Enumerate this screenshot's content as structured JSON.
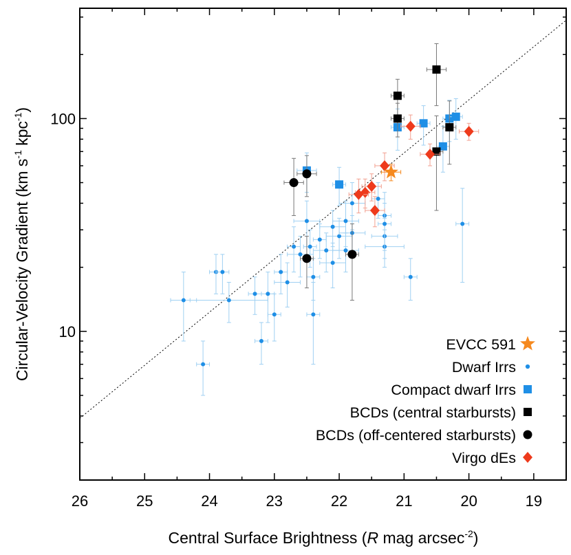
{
  "chart_data": {
    "type": "scatter",
    "title": "",
    "xlabel": {
      "prefix": "Central Surface Brightness (",
      "italic": "R",
      "middle": " mag arcsec",
      "sup": "-2",
      "suffix": ")"
    },
    "ylabel": {
      "prefix": "Circular-Velocity Gradient (km s",
      "sup1": "-1",
      "middle": " kpc",
      "sup2": "-1",
      "suffix": ")"
    },
    "xlim": [
      26,
      18.5
    ],
    "ylim": [
      2.0,
      330
    ],
    "yscale": "log",
    "x_ticks": [
      26,
      25,
      24,
      23,
      22,
      21,
      20,
      19
    ],
    "x_tick_labels": [
      "26",
      "25",
      "24",
      "23",
      "22",
      "21",
      "20",
      "19"
    ],
    "y_ticks": [
      10,
      100
    ],
    "y_tick_labels": [
      "10",
      "100"
    ],
    "fit_line": {
      "style": "dotted",
      "points": [
        [
          26,
          3.9
        ],
        [
          18.5,
          290
        ]
      ]
    },
    "legend_position": "bottom-right",
    "series": [
      {
        "name": "EVCC 591",
        "marker": "star",
        "color": "#f5891f",
        "points": [
          [
            21.2,
            56,
            0.15,
            5
          ]
        ]
      },
      {
        "name": "Dwarf Irrs",
        "marker": "dot",
        "color": "#1f8fe6",
        "err_color": "#9fd0f2",
        "points": [
          [
            24.4,
            14,
            0.2,
            5
          ],
          [
            24.1,
            7,
            0.1,
            2
          ],
          [
            23.9,
            19,
            0.1,
            4
          ],
          [
            23.8,
            19,
            0.1,
            4
          ],
          [
            23.7,
            14,
            0.6,
            3
          ],
          [
            23.3,
            15,
            0.1,
            3
          ],
          [
            23.2,
            9,
            0.1,
            2
          ],
          [
            23.1,
            15,
            0.1,
            4
          ],
          [
            23.0,
            12,
            0.1,
            3
          ],
          [
            22.9,
            19,
            0.1,
            4
          ],
          [
            22.8,
            17,
            0.2,
            4
          ],
          [
            22.7,
            25,
            0.1,
            6
          ],
          [
            22.6,
            23,
            0.2,
            5
          ],
          [
            22.5,
            33,
            0.2,
            8
          ],
          [
            22.45,
            25,
            0.1,
            5
          ],
          [
            22.4,
            12,
            0.1,
            5
          ],
          [
            22.4,
            18,
            0.1,
            4
          ],
          [
            22.3,
            27,
            0.1,
            5
          ],
          [
            22.2,
            24,
            0.2,
            5
          ],
          [
            22.1,
            31,
            0.2,
            6
          ],
          [
            22.1,
            21,
            0.2,
            5
          ],
          [
            22.0,
            28,
            0.2,
            6
          ],
          [
            21.9,
            33,
            0.2,
            8
          ],
          [
            21.9,
            24,
            0.2,
            5
          ],
          [
            21.8,
            40,
            0.2,
            10
          ],
          [
            21.8,
            29,
            0.2,
            6
          ],
          [
            21.4,
            42,
            0.1,
            8
          ],
          [
            21.3,
            35,
            0.1,
            10
          ],
          [
            21.3,
            28,
            0.2,
            6
          ],
          [
            21.3,
            25,
            0.3,
            5
          ],
          [
            21.3,
            32,
            0.1,
            8
          ],
          [
            20.9,
            18,
            0.1,
            4
          ],
          [
            20.1,
            32,
            0.1,
            15
          ]
        ]
      },
      {
        "name": "Compact dwarf Irrs",
        "marker": "square",
        "color": "#1f8fe6",
        "err_color": "#9fd0f2",
        "points": [
          [
            22.5,
            57,
            0.15,
            12
          ],
          [
            22.0,
            49,
            0.1,
            10
          ],
          [
            21.1,
            91,
            0.1,
            20
          ],
          [
            20.7,
            95,
            0.1,
            20
          ],
          [
            20.4,
            74,
            0.1,
            18
          ],
          [
            20.3,
            100,
            0.1,
            22
          ],
          [
            20.2,
            102,
            0.1,
            22
          ]
        ]
      },
      {
        "name": "BCDs (central starbursts)",
        "marker": "square",
        "color": "#000000",
        "err_color": "#777777",
        "points": [
          [
            21.1,
            128,
            0.1,
            25
          ],
          [
            21.1,
            100,
            0.1,
            18
          ],
          [
            20.5,
            170,
            0.15,
            55
          ],
          [
            20.5,
            70,
            0.1,
            33
          ],
          [
            20.3,
            91,
            0.1,
            30
          ]
        ]
      },
      {
        "name": "BCDs (off-centered starbursts)",
        "marker": "circle",
        "color": "#000000",
        "err_color": "#777777",
        "points": [
          [
            22.7,
            50,
            0.15,
            15
          ],
          [
            22.5,
            55,
            0.15,
            12
          ],
          [
            22.5,
            22,
            0.1,
            6
          ],
          [
            21.8,
            23,
            0.1,
            9
          ]
        ]
      },
      {
        "name": "Virgo dEs",
        "marker": "diamond",
        "color": "#ee3a1c",
        "err_color": "#f2a090",
        "points": [
          [
            21.3,
            60,
            0.15,
            9
          ],
          [
            21.5,
            48,
            0.15,
            7
          ],
          [
            21.6,
            45,
            0.15,
            7
          ],
          [
            21.7,
            44,
            0.15,
            8
          ],
          [
            21.45,
            37,
            0.15,
            6
          ],
          [
            20.9,
            92,
            0.15,
            12
          ],
          [
            20.6,
            68,
            0.15,
            8
          ],
          [
            20.0,
            87,
            0.15,
            8
          ]
        ]
      }
    ]
  }
}
